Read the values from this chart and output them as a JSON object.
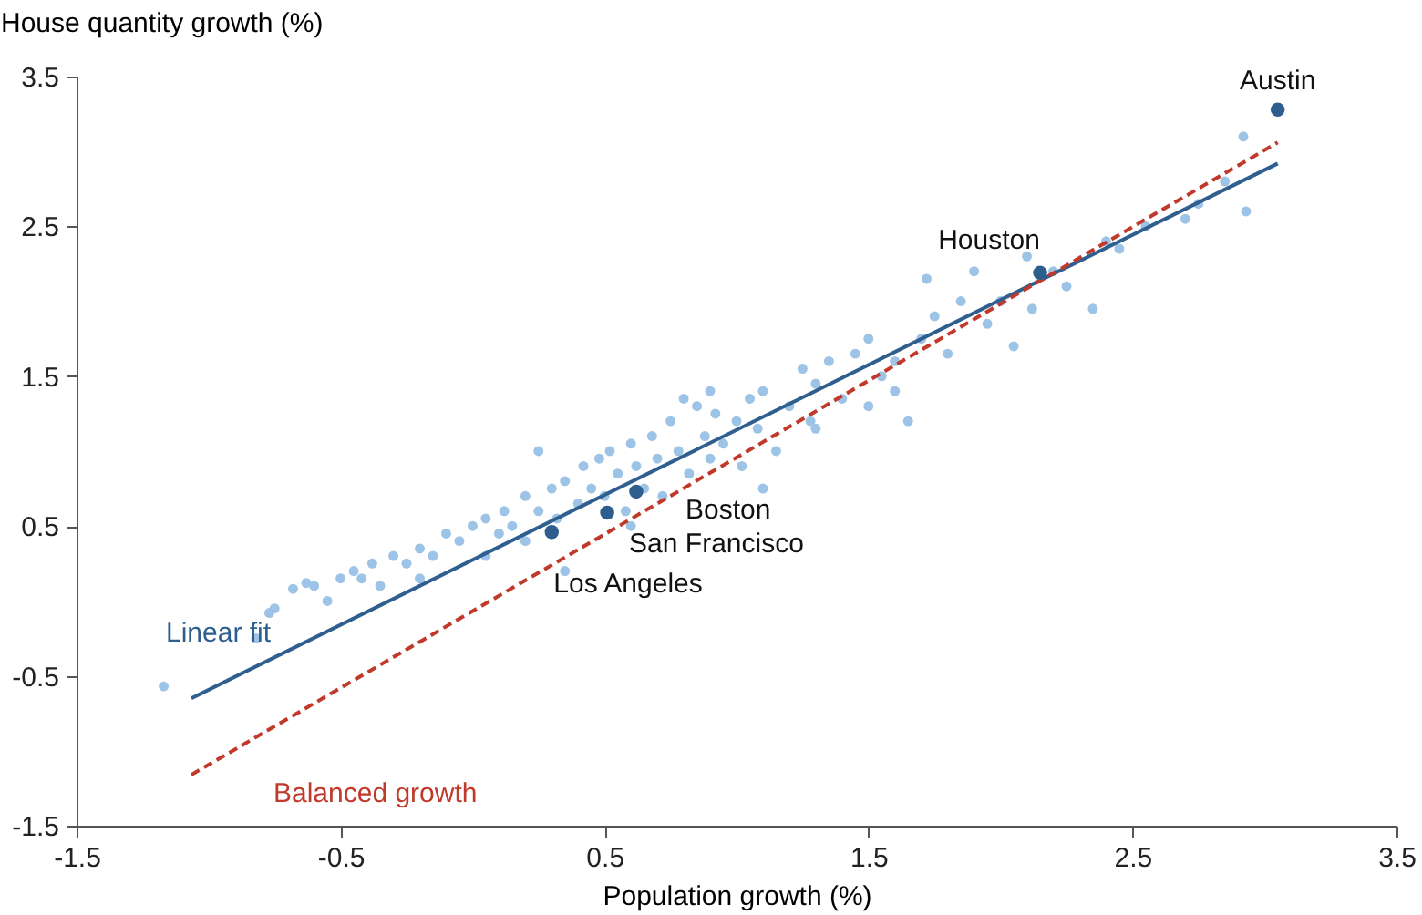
{
  "chart_data": {
    "type": "scatter",
    "xlabel": "Population growth (%)",
    "ylabel": "House quantity growth (%)",
    "xlim": [
      -1.5,
      3.5
    ],
    "xticks": [
      -1.5,
      -0.5,
      0.5,
      1.5,
      2.5,
      3.5
    ],
    "ylim": [
      -1.5,
      3.5
    ],
    "yticks": [
      -1.5,
      -0.5,
      0.5,
      1.5,
      2.5,
      3.5
    ],
    "grid": false,
    "series": [
      {
        "type": "scatter",
        "marker": "circle",
        "color": "#9dc3e6",
        "x": [
          -1.17,
          -0.82,
          -0.77,
          -0.75,
          -0.68,
          -0.63,
          -0.6,
          -0.55,
          -0.5,
          -0.45,
          -0.42,
          -0.38,
          -0.35,
          -0.3,
          -0.25,
          -0.2,
          -0.15,
          -0.1,
          -0.05,
          0.0,
          0.05,
          0.1,
          0.12,
          0.15,
          0.2,
          0.2,
          0.25,
          0.3,
          0.32,
          0.35,
          0.4,
          0.42,
          0.45,
          0.48,
          0.5,
          0.52,
          0.55,
          0.58,
          0.6,
          0.62,
          0.65,
          0.68,
          0.7,
          0.72,
          0.75,
          0.78,
          0.8,
          0.82,
          0.85,
          0.88,
          0.9,
          0.92,
          0.95,
          1.0,
          1.02,
          1.05,
          1.08,
          1.1,
          1.15,
          1.2,
          1.25,
          1.28,
          1.3,
          1.35,
          1.4,
          1.45,
          1.5,
          1.5,
          1.55,
          1.6,
          1.65,
          1.7,
          1.72,
          1.75,
          1.8,
          1.85,
          1.9,
          1.95,
          2.0,
          2.05,
          2.1,
          2.12,
          2.2,
          2.25,
          2.35,
          2.4,
          2.45,
          2.55,
          2.7,
          2.75,
          2.85,
          2.92,
          2.93,
          0.35,
          0.05,
          -0.2,
          0.25,
          0.6,
          1.1,
          0.9,
          1.3,
          1.6
        ],
        "values": [
          -0.57,
          -0.25,
          -0.08,
          -0.05,
          0.08,
          0.12,
          0.1,
          0.0,
          0.15,
          0.2,
          0.15,
          0.25,
          0.1,
          0.3,
          0.25,
          0.35,
          0.3,
          0.45,
          0.4,
          0.5,
          0.55,
          0.45,
          0.6,
          0.5,
          0.7,
          0.4,
          0.6,
          0.75,
          0.55,
          0.8,
          0.65,
          0.9,
          0.75,
          0.95,
          0.7,
          1.0,
          0.85,
          0.6,
          1.05,
          0.9,
          0.75,
          1.1,
          0.95,
          0.7,
          1.2,
          1.0,
          1.35,
          0.85,
          1.3,
          1.1,
          0.95,
          1.25,
          1.05,
          1.2,
          0.9,
          1.35,
          1.15,
          1.4,
          1.0,
          1.3,
          1.55,
          1.2,
          1.45,
          1.6,
          1.35,
          1.65,
          1.3,
          1.75,
          1.5,
          1.6,
          1.2,
          1.75,
          2.15,
          1.9,
          1.65,
          2.0,
          2.2,
          1.85,
          2.0,
          1.7,
          2.3,
          1.95,
          2.2,
          2.1,
          1.95,
          2.4,
          2.35,
          2.5,
          2.55,
          2.65,
          2.8,
          3.1,
          2.6,
          0.2,
          0.3,
          0.15,
          1.0,
          0.5,
          0.75,
          1.4,
          1.15,
          1.4
        ]
      },
      {
        "type": "line",
        "name": "Linear fit",
        "color": "#2f5f8f",
        "line_style": "solid",
        "x": [
          -1.065,
          3.05
        ],
        "values": [
          -0.65,
          2.92
        ]
      },
      {
        "type": "line",
        "name": "Balanced growth",
        "color": "#c0392b",
        "line_style": "dashed",
        "x": [
          -1.065,
          3.05
        ],
        "values": [
          -1.16,
          3.06
        ]
      },
      {
        "type": "scatter",
        "marker": "circle",
        "color": "#2e5e8e",
        "x": [
          3.05,
          2.15,
          0.62,
          0.51,
          0.3
        ],
        "values": [
          3.28,
          2.19,
          0.73,
          0.59,
          0.46
        ]
      }
    ],
    "annotations": [
      {
        "text": "Austin",
        "x": 3.05,
        "y": 3.28
      },
      {
        "text": "Houston",
        "x": 2.15,
        "y": 2.19
      },
      {
        "text": "Boston",
        "x": 0.62,
        "y": 0.73
      },
      {
        "text": "San Francisco",
        "x": 0.51,
        "y": 0.59
      },
      {
        "text": "Los Angeles",
        "x": 0.3,
        "y": 0.46
      }
    ]
  }
}
